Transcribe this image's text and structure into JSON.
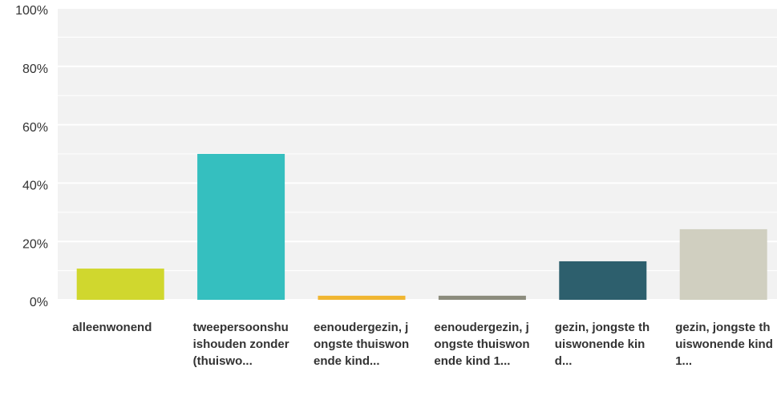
{
  "chart_data": {
    "type": "bar",
    "categories": [
      "alleenwonend",
      "tweepersoonshuishouden zonder (thuiswo...",
      "eenoudergezin, jongste thuiswonende kind...",
      "eenoudergezin, jongste thuiswonende kind 1...",
      "gezin, jongste thuiswonende kind...",
      "gezin, jongste thuiswonende kind 1..."
    ],
    "values": [
      10.7,
      50.0,
      1.4,
      1.4,
      13.2,
      24.2
    ],
    "colors": [
      "#d0d72e",
      "#35bfbf",
      "#f0b631",
      "#8c8c7d",
      "#2d5f6d",
      "#d0cfc0"
    ],
    "ylim": [
      0,
      100
    ],
    "yticks": [
      {
        "value": 0,
        "label": "0%"
      },
      {
        "value": 20,
        "label": "20%"
      },
      {
        "value": 40,
        "label": "40%"
      },
      {
        "value": 60,
        "label": "60%"
      },
      {
        "value": 80,
        "label": "80%"
      },
      {
        "value": 100,
        "label": "100%"
      }
    ],
    "minor_yticks": [
      10,
      30,
      50,
      70,
      90
    ],
    "grid": true
  }
}
